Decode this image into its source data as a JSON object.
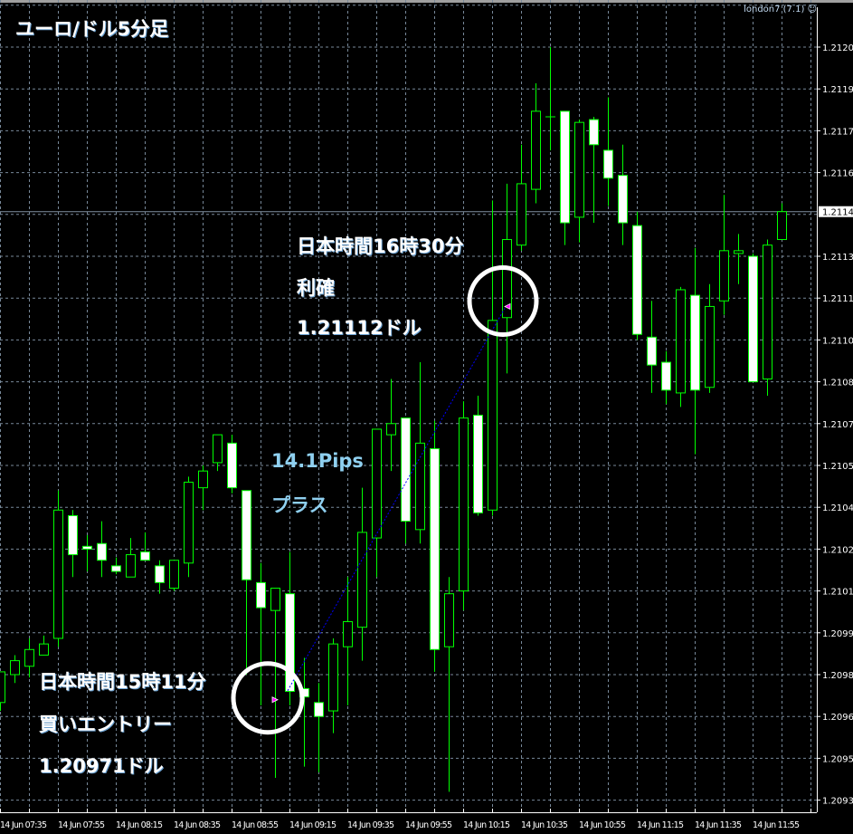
{
  "title": "ユーロ/ドル5分足",
  "expert_label": "london7 (7.1)",
  "expert_icon": "smiley-face-icon",
  "annotations": {
    "exit": [
      "日本時間16時30分",
      "利確",
      "1.21112ドル"
    ],
    "entry": [
      "日本時間15時11分",
      "買いエントリー",
      "1.20971ドル"
    ],
    "profit": [
      "14.1Pips",
      "プラス"
    ]
  },
  "colors": {
    "background": "#000000",
    "wick_and_outline": "#00ff00",
    "bull_body": "#000000",
    "bear_body": "#ffffff",
    "grid": "#778899",
    "trade_line": "#0000ff",
    "trade_marker": "#ff00ff",
    "profit_text": "#8fd0f0"
  },
  "chart_data": {
    "type": "candlestick",
    "symbol_timeframe": "ユーロ/ドル5分足",
    "ylim": [
      1.2093,
      1.2121
    ],
    "grid": true,
    "y_ticks": [
      "1.21205",
      "1.21190",
      "1.21175",
      "1.21160",
      "1.21130",
      "1.21115",
      "1.21100",
      "1.21085",
      "1.21070",
      "1.21055",
      "1.21040",
      "1.21025",
      "1.21010",
      "1.20995",
      "1.20980",
      "1.20965",
      "1.20950",
      "1.20935"
    ],
    "current_price": "1.21146",
    "x_ticks": [
      "14 Jun 07:35",
      "14 Jun 07:55",
      "14 Jun 08:15",
      "14 Jun 08:35",
      "14 Jun 08:55",
      "14 Jun 09:15",
      "14 Jun 09:35",
      "14 Jun 09:55",
      "14 Jun 10:15",
      "14 Jun 10:35",
      "14 Jun 10:55",
      "14 Jun 11:15",
      "14 Jun 11:35",
      "14 Jun 11:55"
    ],
    "times": [
      "07:35",
      "07:40",
      "07:45",
      "07:50",
      "07:55",
      "08:00",
      "08:05",
      "08:10",
      "08:15",
      "08:20",
      "08:25",
      "08:30",
      "08:35",
      "08:40",
      "08:45",
      "08:50",
      "08:55",
      "09:00",
      "09:05",
      "09:10",
      "09:15",
      "09:20",
      "09:25",
      "09:30",
      "09:35",
      "09:40",
      "09:45",
      "09:50",
      "09:55",
      "10:00",
      "10:05",
      "10:10",
      "10:15",
      "10:20",
      "10:25",
      "10:30",
      "10:35",
      "10:40",
      "10:45",
      "10:50",
      "10:55",
      "11:00",
      "11:05",
      "11:10",
      "11:15",
      "11:20",
      "11:25",
      "11:30",
      "11:35",
      "11:40",
      "11:45",
      "11:50",
      "11:55",
      "12:00",
      "12:05"
    ],
    "ohlc": [
      [
        1.2097,
        1.20981,
        1.20967,
        1.20981
      ],
      [
        1.2098,
        1.20987,
        1.20977,
        1.20985
      ],
      [
        1.20983,
        1.20993,
        1.20979,
        1.20989
      ],
      [
        1.20987,
        1.20994,
        1.20987,
        1.20991
      ],
      [
        1.20993,
        1.21046,
        1.2099,
        1.21039
      ],
      [
        1.21037,
        1.21039,
        1.21015,
        1.21023
      ],
      [
        1.21026,
        1.2103,
        1.21017,
        1.21025
      ],
      [
        1.21027,
        1.21035,
        1.21015,
        1.21021
      ],
      [
        1.21019,
        1.21022,
        1.21016,
        1.21017
      ],
      [
        1.21015,
        1.21029,
        1.21015,
        1.21023
      ],
      [
        1.21024,
        1.21031,
        1.21021,
        1.21021
      ],
      [
        1.21019,
        1.21021,
        1.21009,
        1.21013
      ],
      [
        1.21011,
        1.21021,
        1.2101,
        1.21021
      ],
      [
        1.2102,
        1.21051,
        1.21015,
        1.21049
      ],
      [
        1.21047,
        1.21055,
        1.21039,
        1.21053
      ],
      [
        1.21056,
        1.21066,
        1.21053,
        1.21066
      ],
      [
        1.21063,
        1.21066,
        1.21045,
        1.21047
      ],
      [
        1.21046,
        1.21046,
        1.2098,
        1.21014
      ],
      [
        1.21013,
        1.2102,
        1.20969,
        1.21004
      ],
      [
        1.21003,
        1.21011,
        1.20943,
        1.21011
      ],
      [
        1.21009,
        1.21024,
        1.20969,
        1.20974
      ],
      [
        1.20975,
        1.20986,
        1.20947,
        1.20972
      ],
      [
        1.2097,
        1.20977,
        1.20945,
        1.20965
      ],
      [
        1.20967,
        1.20993,
        1.20959,
        1.20991
      ],
      [
        1.2099,
        1.21015,
        1.20969,
        1.20999
      ],
      [
        1.20997,
        1.21047,
        1.20985,
        1.21031
      ],
      [
        1.21029,
        1.21068,
        1.21015,
        1.21068
      ],
      [
        1.21066,
        1.21086,
        1.21053,
        1.2107
      ],
      [
        1.21072,
        1.21072,
        1.21027,
        1.21035
      ],
      [
        1.21032,
        1.21092,
        1.21027,
        1.21063
      ],
      [
        1.21061,
        1.21071,
        1.20981,
        1.20989
      ],
      [
        1.2099,
        1.21015,
        1.20938,
        1.21009
      ],
      [
        1.2101,
        1.21078,
        1.21003,
        1.21072
      ],
      [
        1.21073,
        1.2108,
        1.21037,
        1.21038
      ],
      [
        1.21039,
        1.2115,
        1.21037,
        1.21107
      ],
      [
        1.21108,
        1.21156,
        1.21088,
        1.21136
      ],
      [
        1.21134,
        1.2117,
        1.21132,
        1.21156
      ],
      [
        1.21154,
        1.21192,
        1.21149,
        1.21182
      ],
      [
        1.2118,
        1.21205,
        1.21168,
        1.2118
      ],
      [
        1.21182,
        1.21182,
        1.21134,
        1.21142
      ],
      [
        1.21144,
        1.21179,
        1.21135,
        1.21178
      ],
      [
        1.21179,
        1.2118,
        1.21142,
        1.2117
      ],
      [
        1.21168,
        1.21187,
        1.21148,
        1.21158
      ],
      [
        1.21159,
        1.2117,
        1.21134,
        1.21142
      ],
      [
        1.21141,
        1.21146,
        1.211,
        1.21102
      ],
      [
        1.21101,
        1.21114,
        1.21081,
        1.21091
      ],
      [
        1.21092,
        1.21096,
        1.21077,
        1.21082
      ],
      [
        1.21081,
        1.21119,
        1.21076,
        1.21118
      ],
      [
        1.21116,
        1.21133,
        1.21059,
        1.21082
      ],
      [
        1.21083,
        1.2112,
        1.21081,
        1.21112
      ],
      [
        1.21114,
        1.21152,
        1.21109,
        1.21132
      ],
      [
        1.21131,
        1.21138,
        1.2112,
        1.21132
      ],
      [
        1.2113,
        1.21131,
        1.21085,
        1.21085
      ],
      [
        1.21086,
        1.21136,
        1.2108,
        1.21134
      ],
      [
        1.21136,
        1.21149,
        1.21136,
        1.21146
      ]
    ],
    "trade": {
      "entry": {
        "time": "09:10",
        "price": 1.20971
      },
      "exit": {
        "time": "10:30",
        "price": 1.21112
      }
    }
  }
}
